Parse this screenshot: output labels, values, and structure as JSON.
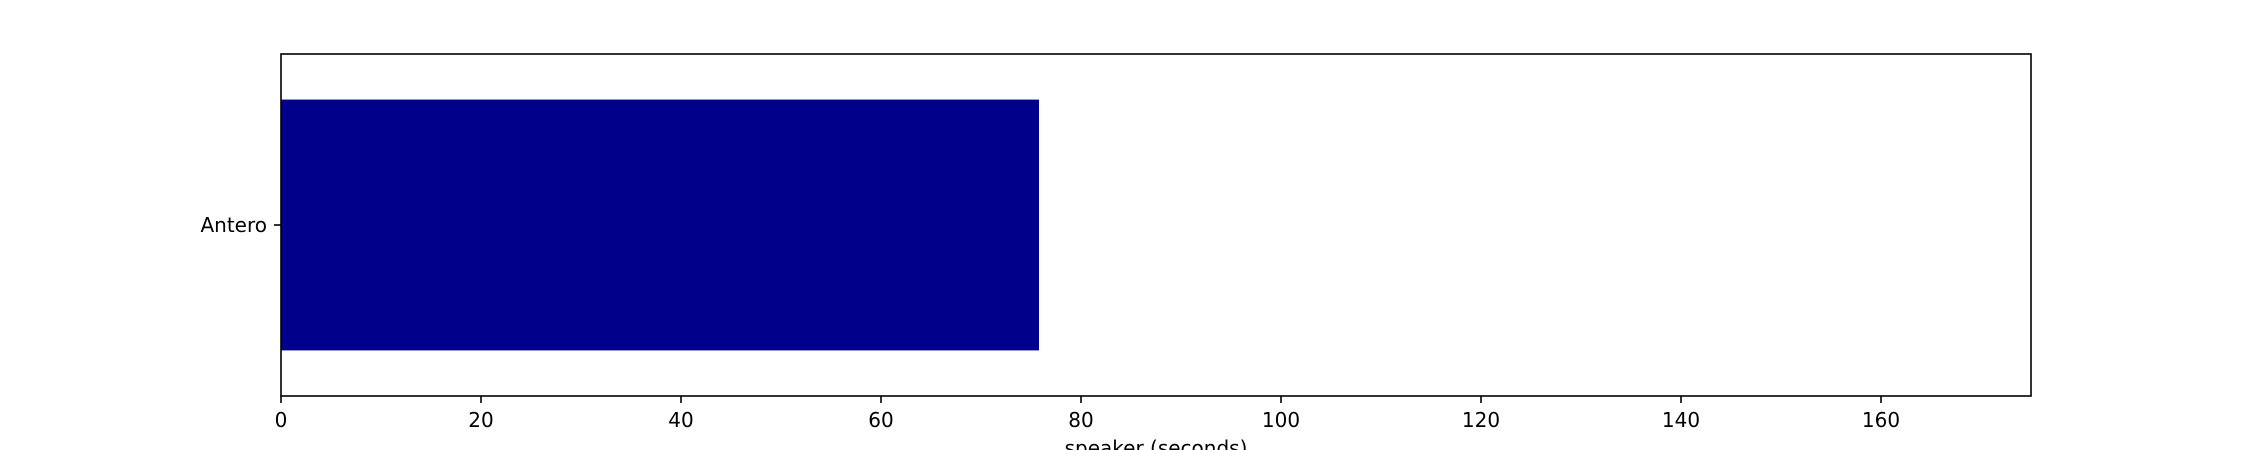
{
  "chart_data": {
    "type": "bar",
    "orientation": "horizontal",
    "categories": [
      "Antero"
    ],
    "values": [
      75.8
    ],
    "xlabel": "speaker (seconds)",
    "ylabel": "",
    "xlim": [
      0,
      175
    ],
    "xticks": [
      0,
      20,
      40,
      60,
      80,
      100,
      120,
      140,
      160
    ],
    "grid": false,
    "legend": "none",
    "bar_color": "#00008b"
  }
}
